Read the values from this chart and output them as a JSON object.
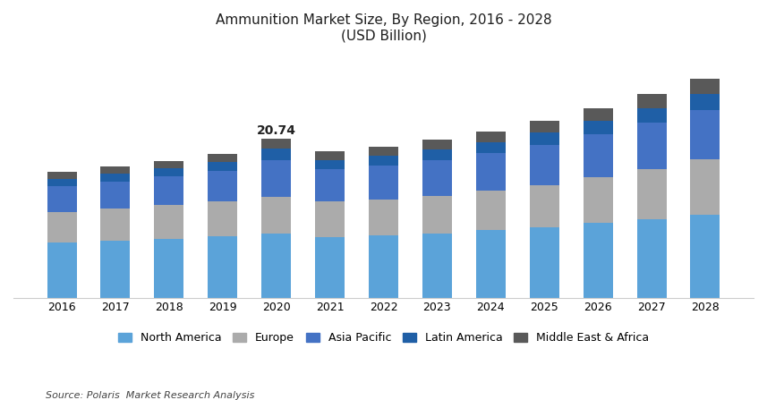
{
  "title_line1": "Ammunition Market Size, By Region, 2016 - 2028",
  "title_line2": "(USD Billion)",
  "years": [
    2016,
    2017,
    2018,
    2019,
    2020,
    2021,
    2022,
    2023,
    2024,
    2025,
    2026,
    2027,
    2028
  ],
  "regions": [
    "North America",
    "Europe",
    "Asia Pacific",
    "Latin America",
    "Middle East & Africa"
  ],
  "colors": [
    "#5BA3D9",
    "#ABABAB",
    "#4472C4",
    "#1F5FA6",
    "#595959"
  ],
  "data": {
    "North America": [
      7.2,
      7.4,
      7.7,
      8.0,
      8.3,
      7.9,
      8.1,
      8.4,
      8.8,
      9.2,
      9.7,
      10.2,
      10.8
    ],
    "Europe": [
      4.0,
      4.2,
      4.4,
      4.6,
      4.8,
      4.6,
      4.7,
      4.9,
      5.1,
      5.5,
      6.0,
      6.6,
      7.2
    ],
    "Asia Pacific": [
      3.3,
      3.5,
      3.7,
      3.9,
      4.8,
      4.2,
      4.4,
      4.6,
      4.9,
      5.2,
      5.6,
      6.0,
      6.5
    ],
    "Latin America": [
      1.0,
      1.05,
      1.1,
      1.2,
      1.54,
      1.25,
      1.3,
      1.4,
      1.5,
      1.6,
      1.75,
      1.9,
      2.05
    ],
    "Middle East & Africa": [
      0.85,
      0.9,
      0.95,
      1.05,
      1.32,
      1.1,
      1.15,
      1.25,
      1.35,
      1.5,
      1.65,
      1.8,
      2.0
    ]
  },
  "annotation_year": 2020,
  "annotation_value": "20.74",
  "annotation_total": 20.74,
  "source_text": "Source: Polaris  Market Research Analysis",
  "background_color": "#FFFFFF",
  "bar_width": 0.55,
  "ylim_max": 32,
  "title_color": "#1F1F1F",
  "title_fontsize": 11,
  "tick_fontsize": 9,
  "legend_fontsize": 9
}
